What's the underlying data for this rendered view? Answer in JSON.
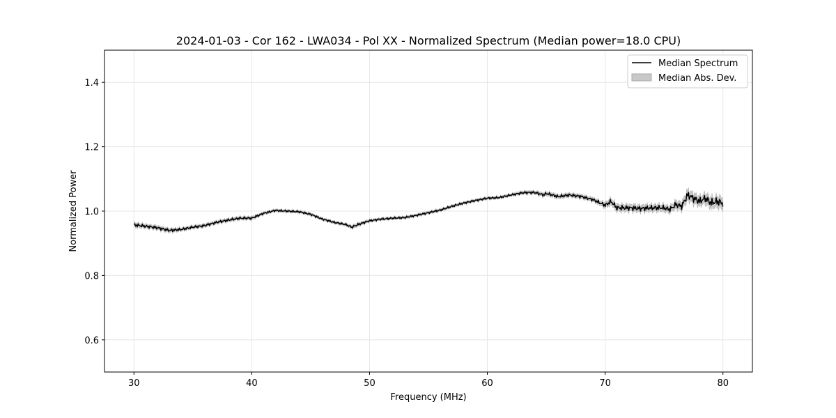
{
  "chart_data": {
    "type": "line",
    "title": "2024-01-03 - Cor 162 - LWA034 - Pol XX - Normalized Spectrum (Median power=18.0 CPU)",
    "xlabel": "Frequency (MHz)",
    "ylabel": "Normalized Power",
    "xlim": [
      27.5,
      82.5
    ],
    "ylim": [
      0.5,
      1.5
    ],
    "xticks": [
      30,
      40,
      50,
      60,
      70,
      80
    ],
    "yticks": [
      0.6,
      0.8,
      1.0,
      1.2,
      1.4
    ],
    "xtick_labels": [
      "30",
      "40",
      "50",
      "60",
      "70",
      "80"
    ],
    "ytick_labels": [
      "0.6",
      "0.8",
      "1.0",
      "1.2",
      "1.4"
    ],
    "grid": true,
    "legend_position": "top-right",
    "series": [
      {
        "name": "Median Spectrum",
        "color": "#000000",
        "x": [
          30,
          31,
          32,
          33,
          34,
          35,
          36,
          37,
          38,
          39,
          40,
          41,
          42,
          43,
          44,
          45,
          46,
          47,
          48,
          48.5,
          49,
          50,
          51,
          52,
          53,
          54,
          55,
          56,
          57,
          58,
          59,
          60,
          61,
          62,
          63,
          64,
          64.8,
          65,
          66,
          67,
          68,
          69,
          70,
          70.5,
          71,
          72,
          73,
          74,
          75,
          75.5,
          76,
          76.5,
          77,
          77.5,
          78,
          78.5,
          79,
          79.5,
          80
        ],
        "y": [
          0.957,
          0.953,
          0.948,
          0.94,
          0.943,
          0.95,
          0.955,
          0.965,
          0.972,
          0.978,
          0.978,
          0.993,
          1.002,
          1.0,
          0.998,
          0.99,
          0.975,
          0.965,
          0.958,
          0.95,
          0.958,
          0.97,
          0.975,
          0.978,
          0.98,
          0.987,
          0.995,
          1.003,
          1.015,
          1.025,
          1.033,
          1.04,
          1.042,
          1.05,
          1.057,
          1.058,
          1.05,
          1.055,
          1.045,
          1.05,
          1.045,
          1.035,
          1.018,
          1.03,
          1.01,
          1.01,
          1.008,
          1.01,
          1.01,
          1.005,
          1.02,
          1.015,
          1.05,
          1.04,
          1.03,
          1.04,
          1.025,
          1.03,
          1.025
        ]
      }
    ],
    "band": {
      "name": "Median Abs. Dev.",
      "color": "#c8c8c8",
      "half_width": [
        0.007,
        0.006,
        0.006,
        0.006,
        0.005,
        0.005,
        0.005,
        0.005,
        0.005,
        0.005,
        0.005,
        0.004,
        0.004,
        0.004,
        0.004,
        0.004,
        0.004,
        0.004,
        0.004,
        0.005,
        0.005,
        0.004,
        0.004,
        0.004,
        0.004,
        0.004,
        0.004,
        0.004,
        0.004,
        0.004,
        0.004,
        0.004,
        0.004,
        0.004,
        0.005,
        0.005,
        0.006,
        0.006,
        0.006,
        0.006,
        0.006,
        0.006,
        0.008,
        0.01,
        0.01,
        0.01,
        0.01,
        0.01,
        0.01,
        0.01,
        0.012,
        0.012,
        0.016,
        0.015,
        0.014,
        0.015,
        0.016,
        0.016,
        0.017
      ]
    }
  }
}
